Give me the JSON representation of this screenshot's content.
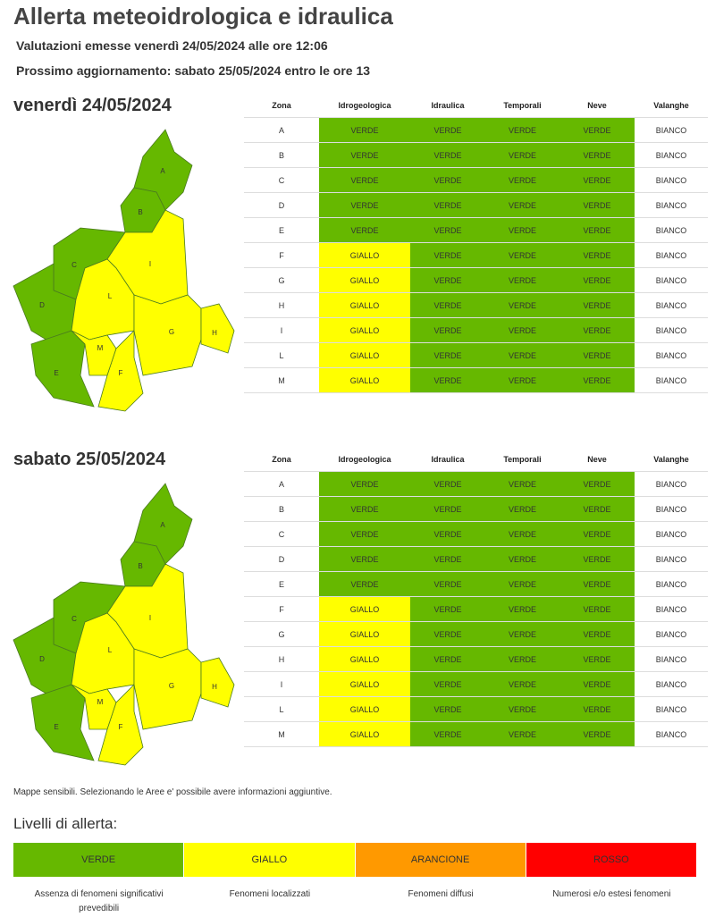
{
  "header": {
    "title": "Allerta meteoidrologica e idraulica",
    "issued": "Valutazioni emesse venerdì 24/05/2024 alle ore 12:06",
    "next_update": "Prossimo aggiornamento: sabato 25/05/2024 entro le ore 13"
  },
  "days": [
    {
      "date": "venerdì 24/05/2024",
      "table": {
        "columns": [
          "Zona",
          "Idrogeologica",
          "Idraulica",
          "Temporali",
          "Neve",
          "Valanghe"
        ],
        "rows": [
          [
            "A",
            "VERDE",
            "VERDE",
            "VERDE",
            "VERDE",
            "BIANCO"
          ],
          [
            "B",
            "VERDE",
            "VERDE",
            "VERDE",
            "VERDE",
            "BIANCO"
          ],
          [
            "C",
            "VERDE",
            "VERDE",
            "VERDE",
            "VERDE",
            "BIANCO"
          ],
          [
            "D",
            "VERDE",
            "VERDE",
            "VERDE",
            "VERDE",
            "BIANCO"
          ],
          [
            "E",
            "VERDE",
            "VERDE",
            "VERDE",
            "VERDE",
            "BIANCO"
          ],
          [
            "F",
            "GIALLO",
            "VERDE",
            "VERDE",
            "VERDE",
            "BIANCO"
          ],
          [
            "G",
            "GIALLO",
            "VERDE",
            "VERDE",
            "VERDE",
            "BIANCO"
          ],
          [
            "H",
            "GIALLO",
            "VERDE",
            "VERDE",
            "VERDE",
            "BIANCO"
          ],
          [
            "I",
            "GIALLO",
            "VERDE",
            "VERDE",
            "VERDE",
            "BIANCO"
          ],
          [
            "L",
            "GIALLO",
            "VERDE",
            "VERDE",
            "VERDE",
            "BIANCO"
          ],
          [
            "M",
            "GIALLO",
            "VERDE",
            "VERDE",
            "VERDE",
            "BIANCO"
          ]
        ]
      },
      "map": {
        "labels": [
          "A",
          "B",
          "C",
          "D",
          "E",
          "I",
          "L",
          "M",
          "F",
          "G",
          "H"
        ]
      }
    },
    {
      "date": "sabato 25/05/2024",
      "table": {
        "columns": [
          "Zona",
          "Idrogeologica",
          "Idraulica",
          "Temporali",
          "Neve",
          "Valanghe"
        ],
        "rows": [
          [
            "A",
            "VERDE",
            "VERDE",
            "VERDE",
            "VERDE",
            "BIANCO"
          ],
          [
            "B",
            "VERDE",
            "VERDE",
            "VERDE",
            "VERDE",
            "BIANCO"
          ],
          [
            "C",
            "VERDE",
            "VERDE",
            "VERDE",
            "VERDE",
            "BIANCO"
          ],
          [
            "D",
            "VERDE",
            "VERDE",
            "VERDE",
            "VERDE",
            "BIANCO"
          ],
          [
            "E",
            "VERDE",
            "VERDE",
            "VERDE",
            "VERDE",
            "BIANCO"
          ],
          [
            "F",
            "GIALLO",
            "VERDE",
            "VERDE",
            "VERDE",
            "BIANCO"
          ],
          [
            "G",
            "GIALLO",
            "VERDE",
            "VERDE",
            "VERDE",
            "BIANCO"
          ],
          [
            "H",
            "GIALLO",
            "VERDE",
            "VERDE",
            "VERDE",
            "BIANCO"
          ],
          [
            "I",
            "GIALLO",
            "VERDE",
            "VERDE",
            "VERDE",
            "BIANCO"
          ],
          [
            "L",
            "GIALLO",
            "VERDE",
            "VERDE",
            "VERDE",
            "BIANCO"
          ],
          [
            "M",
            "GIALLO",
            "VERDE",
            "VERDE",
            "VERDE",
            "BIANCO"
          ]
        ]
      },
      "map": {
        "labels": [
          "A",
          "B",
          "C",
          "D",
          "E",
          "I",
          "L",
          "M",
          "F",
          "G",
          "H"
        ]
      }
    }
  ],
  "note": "Mappe sensibili. Selezionando le Aree e' possibile avere informazioni aggiuntive.",
  "legend": {
    "title": "Livelli di allerta:",
    "levels": [
      {
        "name": "VERDE",
        "color": "#66b800",
        "description": "Assenza di fenomeni significativi prevedibili"
      },
      {
        "name": "GIALLO",
        "color": "#ffff00",
        "description": "Fenomeni localizzati"
      },
      {
        "name": "ARANCIONE",
        "color": "#ff9900",
        "description": "Fenomeni diffusi"
      },
      {
        "name": "ROSSO",
        "color": "#ff0000",
        "description": "Numerosi e/o estesi fenomeni"
      }
    ]
  }
}
